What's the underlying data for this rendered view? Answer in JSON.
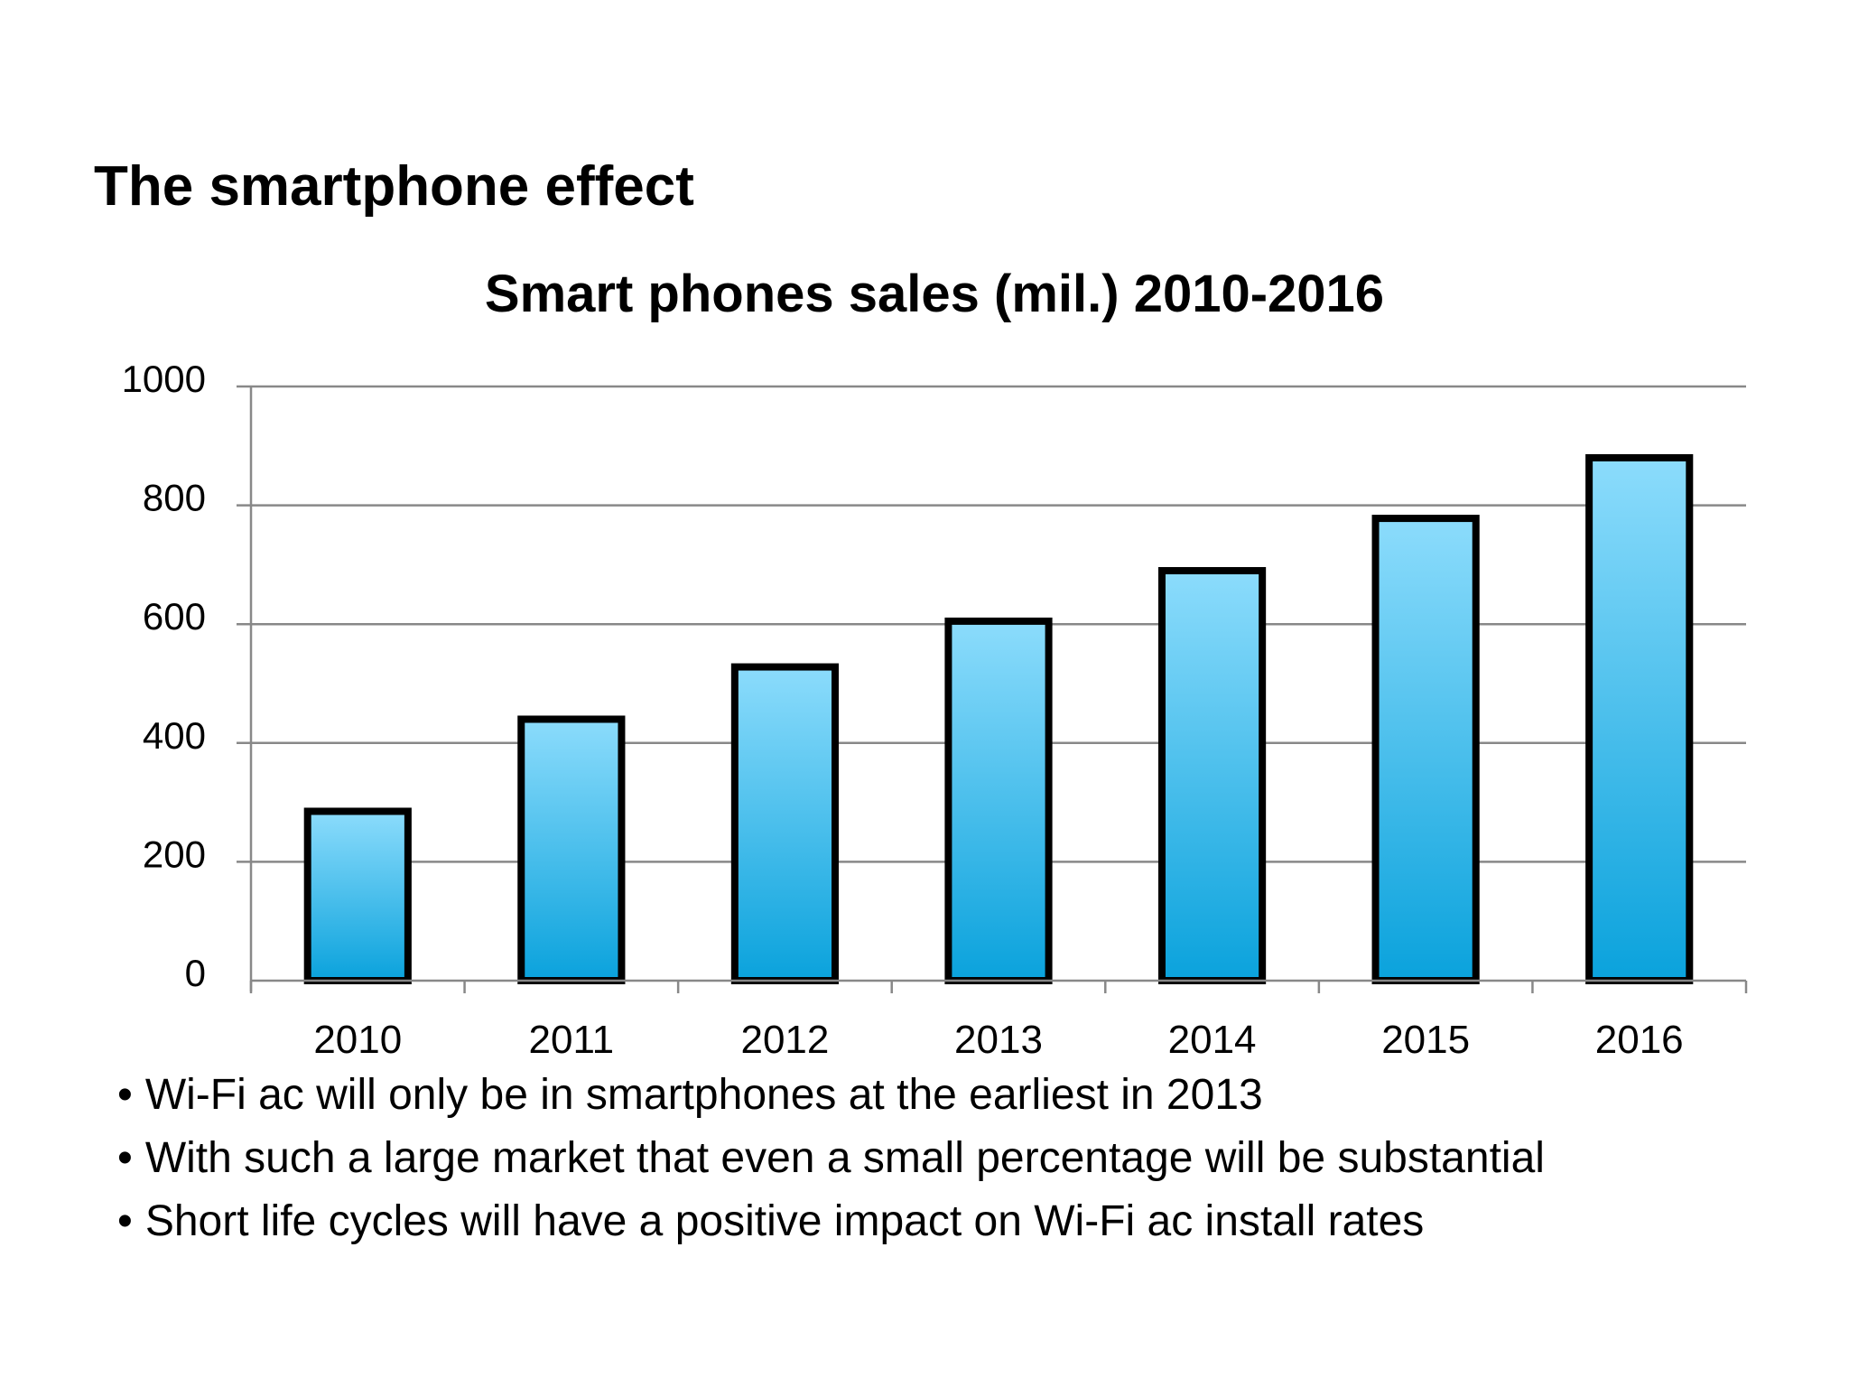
{
  "slide": {
    "title": "The smartphone effect",
    "bullets": [
      "Wi-Fi ac will only be in smartphones at the earliest in 2013",
      "With such a large market that even a small percentage will be substantial",
      "Short life cycles will have a positive impact on Wi-Fi ac install rates"
    ]
  },
  "chart_data": {
    "type": "bar",
    "title": "Smart phones sales (mil.) 2010-2016",
    "xlabel": "",
    "ylabel": "",
    "categories": [
      "2010",
      "2011",
      "2012",
      "2013",
      "2014",
      "2015",
      "2016"
    ],
    "values": [
      285,
      440,
      528,
      605,
      690,
      778,
      880
    ],
    "ylim": [
      0,
      1000
    ],
    "yticks": [
      "0",
      "200",
      "400",
      "600",
      "800",
      "1000"
    ],
    "grid": true,
    "legend": "none",
    "colors": {
      "bar_top": "#8cdcfc",
      "bar_bottom": "#0aa2dc",
      "bar_border": "#000000",
      "grid": "#888888",
      "axis": "#888888"
    }
  }
}
